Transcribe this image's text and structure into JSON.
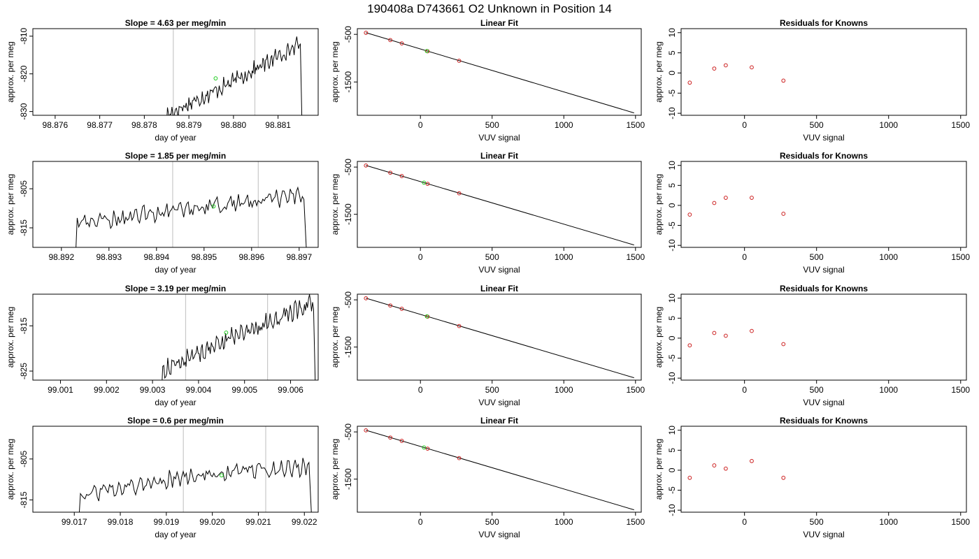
{
  "figure_title": "190408a      D743661    O2 Unknown in Position  14",
  "chart_data": [
    {
      "row": 1,
      "panel": "time",
      "type": "line",
      "title": "Slope =  4.63  per meg/min",
      "xlabel": "day of year",
      "ylabel": "approx. per meg",
      "xlim": [
        98.8755,
        98.8819
      ],
      "ylim": [
        -831,
        -808
      ],
      "xticks": [
        98.876,
        98.877,
        98.878,
        98.879,
        98.88,
        98.881
      ],
      "xtick_labels": [
        "98.876",
        "98.877",
        "98.878",
        "98.879",
        "98.880",
        "98.881"
      ],
      "yticks": [
        -830,
        -820,
        -810
      ],
      "ytick_labels": [
        "-830",
        "-820",
        "-810"
      ],
      "trace": {
        "x_start": 98.8785,
        "x_end": 98.8815,
        "y_start": -831,
        "y_mid": -822,
        "y_end": -812,
        "noise": 1.6,
        "drop_to": -833
      },
      "vlines": [
        98.87865,
        98.88048
      ],
      "green_point": [
        98.8796,
        -821.2
      ]
    },
    {
      "row": 1,
      "panel": "fit",
      "type": "scatter",
      "title": "Linear Fit",
      "xlabel": "VUV signal",
      "ylabel": "approx. per meg",
      "xlim": [
        -440,
        1540
      ],
      "ylim": [
        -2200,
        -380
      ],
      "xticks": [
        0,
        500,
        1000,
        1500
      ],
      "xtick_labels": [
        "0",
        "500",
        "1000",
        "1500"
      ],
      "yticks": [
        -1500,
        -500
      ],
      "ytick_labels": [
        "-1500",
        "-500"
      ],
      "fit_line": {
        "x": [
          -380,
          1490
        ],
        "y": [
          -465,
          -2150
        ]
      },
      "knowns": [
        [
          -380,
          -467
        ],
        [
          -210,
          -620
        ],
        [
          -130,
          -690
        ],
        [
          50,
          -855
        ],
        [
          270,
          -1055
        ]
      ],
      "green_point": [
        45,
        -850
      ]
    },
    {
      "row": 1,
      "panel": "residuals",
      "type": "scatter",
      "title": "Residuals for Knowns",
      "xlabel": "VUV signal",
      "ylabel": "approx. per meg",
      "xlim": [
        -440,
        1540
      ],
      "ylim": [
        -10.5,
        11
      ],
      "xticks": [
        0,
        500,
        1000,
        1500
      ],
      "xtick_labels": [
        "0",
        "500",
        "1000",
        "1500"
      ],
      "yticks": [
        -10,
        -5,
        0,
        5,
        10
      ],
      "ytick_labels": [
        "-10",
        "-5",
        "0",
        "5",
        "10"
      ],
      "residuals": [
        [
          -380,
          -2.4
        ],
        [
          -210,
          1.1
        ],
        [
          -130,
          1.9
        ],
        [
          50,
          1.4
        ],
        [
          270,
          -1.9
        ]
      ]
    },
    {
      "row": 2,
      "panel": "time",
      "type": "line",
      "title": "Slope =  1.85  per meg/min",
      "xlabel": "day of year",
      "ylabel": "approx. per meg",
      "xlim": [
        98.8914,
        98.8974
      ],
      "ylim": [
        -820,
        -798
      ],
      "xticks": [
        98.892,
        98.893,
        98.894,
        98.895,
        98.896,
        98.897
      ],
      "xtick_labels": [
        "98.892",
        "98.893",
        "98.894",
        "98.895",
        "98.896",
        "98.897"
      ],
      "yticks": [
        -815,
        -805
      ],
      "ytick_labels": [
        "-815",
        "-805"
      ],
      "trace": {
        "x_start": 98.8923,
        "x_end": 98.8971,
        "y_start": -814,
        "y_mid": -810,
        "y_end": -807,
        "noise": 1.6,
        "drop_to": -822
      },
      "vlines": [
        98.89434,
        98.89614
      ],
      "green_point": [
        98.8952,
        -809.5
      ]
    },
    {
      "row": 2,
      "panel": "fit",
      "type": "scatter",
      "title": "Linear Fit",
      "xlabel": "VUV signal",
      "ylabel": "approx. per meg",
      "xlim": [
        -440,
        1540
      ],
      "ylim": [
        -2200,
        -380
      ],
      "xticks": [
        0,
        500,
        1000,
        1500
      ],
      "xtick_labels": [
        "0",
        "500",
        "1000",
        "1500"
      ],
      "yticks": [
        -1500,
        -500
      ],
      "ytick_labels": [
        "-1500",
        "-500"
      ],
      "fit_line": {
        "x": [
          -380,
          1490
        ],
        "y": [
          -465,
          -2150
        ]
      },
      "knowns": [
        [
          -380,
          -467
        ],
        [
          -210,
          -620
        ],
        [
          -130,
          -690
        ],
        [
          50,
          -855
        ],
        [
          270,
          -1055
        ]
      ],
      "green_point": [
        25,
        -830
      ]
    },
    {
      "row": 2,
      "panel": "residuals",
      "type": "scatter",
      "title": "Residuals for Knowns",
      "xlabel": "VUV signal",
      "ylabel": "approx. per meg",
      "xlim": [
        -440,
        1540
      ],
      "ylim": [
        -10.5,
        11
      ],
      "xticks": [
        0,
        500,
        1000,
        1500
      ],
      "xtick_labels": [
        "0",
        "500",
        "1000",
        "1500"
      ],
      "yticks": [
        -10,
        -5,
        0,
        5,
        10
      ],
      "ytick_labels": [
        "-10",
        "-5",
        "0",
        "5",
        "10"
      ],
      "residuals": [
        [
          -380,
          -2.3
        ],
        [
          -210,
          0.6
        ],
        [
          -130,
          1.9
        ],
        [
          50,
          1.9
        ],
        [
          270,
          -2.1
        ]
      ]
    },
    {
      "row": 3,
      "panel": "time",
      "type": "line",
      "title": "Slope =  3.19  per meg/min",
      "xlabel": "day of year",
      "ylabel": "approx. per meg",
      "xlim": [
        99.0004,
        99.0066
      ],
      "ylim": [
        -827,
        -808
      ],
      "xticks": [
        99.001,
        99.002,
        99.003,
        99.004,
        99.005,
        99.006
      ],
      "xtick_labels": [
        "99.001",
        "99.002",
        "99.003",
        "99.004",
        "99.005",
        "99.006"
      ],
      "yticks": [
        -825,
        -815
      ],
      "ytick_labels": [
        "-825",
        "-815"
      ],
      "trace": {
        "x_start": 99.0032,
        "x_end": 99.0065,
        "y_start": -825,
        "y_mid": -817,
        "y_end": -810,
        "noise": 1.5,
        "drop_to": -829
      },
      "vlines": [
        99.00372,
        99.0055
      ],
      "green_point": [
        99.0046,
        -816.5
      ]
    },
    {
      "row": 3,
      "panel": "fit",
      "type": "scatter",
      "title": "Linear Fit",
      "xlabel": "VUV signal",
      "ylabel": "approx. per meg",
      "xlim": [
        -440,
        1540
      ],
      "ylim": [
        -2200,
        -380
      ],
      "xticks": [
        0,
        500,
        1000,
        1500
      ],
      "xtick_labels": [
        "0",
        "500",
        "1000",
        "1500"
      ],
      "yticks": [
        -1500,
        -500
      ],
      "ytick_labels": [
        "-1500",
        "-500"
      ],
      "fit_line": {
        "x": [
          -380,
          1490
        ],
        "y": [
          -465,
          -2150
        ]
      },
      "knowns": [
        [
          -380,
          -467
        ],
        [
          -210,
          -620
        ],
        [
          -130,
          -690
        ],
        [
          50,
          -855
        ],
        [
          270,
          -1055
        ]
      ],
      "green_point": [
        45,
        -850
      ]
    },
    {
      "row": 3,
      "panel": "residuals",
      "type": "scatter",
      "title": "Residuals for Knowns",
      "xlabel": "VUV signal",
      "ylabel": "approx. per meg",
      "xlim": [
        -440,
        1540
      ],
      "ylim": [
        -10.5,
        11
      ],
      "xticks": [
        0,
        500,
        1000,
        1500
      ],
      "xtick_labels": [
        "0",
        "500",
        "1000",
        "1500"
      ],
      "yticks": [
        -10,
        -5,
        0,
        5,
        10
      ],
      "ytick_labels": [
        "-10",
        "-5",
        "0",
        "5",
        "10"
      ],
      "residuals": [
        [
          -380,
          -1.8
        ],
        [
          -210,
          1.3
        ],
        [
          -130,
          0.6
        ],
        [
          50,
          1.8
        ],
        [
          270,
          -1.5
        ]
      ]
    },
    {
      "row": 4,
      "panel": "time",
      "type": "line",
      "title": "Slope =  0.6  per meg/min",
      "xlabel": "day of year",
      "ylabel": "approx. per meg",
      "xlim": [
        99.0161,
        99.0223
      ],
      "ylim": [
        -818,
        -797
      ],
      "xticks": [
        99.017,
        99.018,
        99.019,
        99.02,
        99.021,
        99.022
      ],
      "xtick_labels": [
        "99.017",
        "99.018",
        "99.019",
        "99.020",
        "99.021",
        "99.022"
      ],
      "yticks": [
        -815,
        -805
      ],
      "ytick_labels": [
        "-815",
        "-805"
      ],
      "trace": {
        "x_start": 99.0171,
        "x_end": 99.0221,
        "y_start": -814,
        "y_mid": -809,
        "y_end": -807,
        "noise": 1.5,
        "drop_to": -820
      },
      "vlines": [
        99.01937,
        99.02116
      ],
      "green_point": [
        99.0202,
        -809
      ]
    },
    {
      "row": 4,
      "panel": "fit",
      "type": "scatter",
      "title": "Linear Fit",
      "xlabel": "VUV signal",
      "ylabel": "approx. per meg",
      "xlim": [
        -440,
        1540
      ],
      "ylim": [
        -2200,
        -380
      ],
      "xticks": [
        0,
        500,
        1000,
        1500
      ],
      "xtick_labels": [
        "0",
        "500",
        "1000",
        "1500"
      ],
      "yticks": [
        -1500,
        -500
      ],
      "ytick_labels": [
        "-1500",
        "-500"
      ],
      "fit_line": {
        "x": [
          -380,
          1490
        ],
        "y": [
          -465,
          -2150
        ]
      },
      "knowns": [
        [
          -380,
          -467
        ],
        [
          -210,
          -620
        ],
        [
          -130,
          -690
        ],
        [
          50,
          -855
        ],
        [
          270,
          -1055
        ]
      ],
      "green_point": [
        25,
        -830
      ]
    },
    {
      "row": 4,
      "panel": "residuals",
      "type": "scatter",
      "title": "Residuals for Knowns",
      "xlabel": "VUV signal",
      "ylabel": "approx. per meg",
      "xlim": [
        -440,
        1540
      ],
      "ylim": [
        -10.5,
        11
      ],
      "xticks": [
        0,
        500,
        1000,
        1500
      ],
      "xtick_labels": [
        "0",
        "500",
        "1000",
        "1500"
      ],
      "yticks": [
        -10,
        -5,
        0,
        5,
        10
      ],
      "ytick_labels": [
        "-10",
        "-5",
        "0",
        "5",
        "10"
      ],
      "residuals": [
        [
          -380,
          -1.9
        ],
        [
          -210,
          1.2
        ],
        [
          -130,
          0.4
        ],
        [
          50,
          2.3
        ],
        [
          270,
          -1.9
        ]
      ]
    }
  ]
}
